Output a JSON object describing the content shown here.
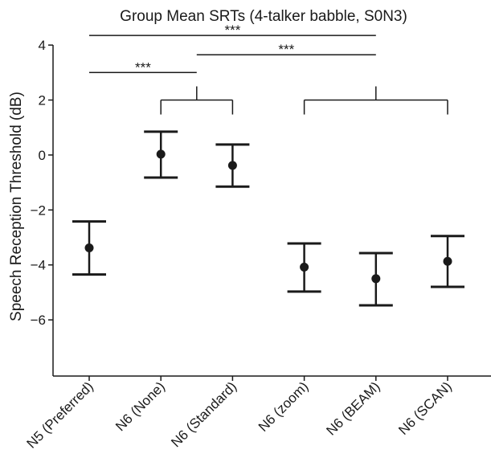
{
  "chart_data": {
    "type": "errorbar",
    "title": "Group Mean SRTs (4-talker babble, S0N3)",
    "xlabel": "",
    "ylabel": "Speech Reception Threshold (dB)",
    "ylim": [
      -7,
      5
    ],
    "yticks": [
      4,
      2,
      0,
      -2,
      -4,
      -6
    ],
    "ytick_labels": [
      "4",
      "2",
      "0",
      "−2",
      "−4",
      "−6"
    ],
    "grid": false,
    "categories": [
      "N5 (Preferred)",
      "N6 (None)",
      "N6 (Standard)",
      "N6 (zoom)",
      "N6 (BEAM)",
      "N6 (SCAN)"
    ],
    "means": [
      -3.38,
      0.03,
      -0.38,
      -4.08,
      -4.5,
      -3.87
    ],
    "upper": [
      -2.42,
      0.85,
      0.38,
      -3.22,
      -3.57,
      -2.95
    ],
    "lower": [
      -4.35,
      -0.82,
      -1.15,
      -4.97,
      -5.47,
      -4.8
    ],
    "marker_color": "#1a1a1a",
    "groups": [
      {
        "members": [
          1,
          2
        ],
        "y": 2
      },
      {
        "members": [
          3,
          4,
          5
        ],
        "y": 2
      }
    ],
    "significance": [
      {
        "from": "N5 (Preferred)",
        "to": "N6 (BEAM)",
        "y": 4.35,
        "label": "***"
      },
      {
        "from": "group: N6 (None), N6 (Standard)",
        "to": "N6 (BEAM)",
        "y": 3.65,
        "label": "***"
      },
      {
        "from": "N5 (Preferred)",
        "to": "group: N6 (None), N6 (Standard)",
        "y": 3.0,
        "label": "***"
      }
    ]
  }
}
